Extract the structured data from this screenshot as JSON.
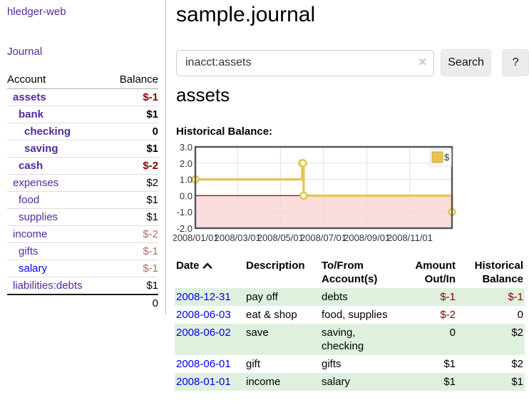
{
  "app": {
    "brand": "hledger-web",
    "nav_journal": "Journal"
  },
  "sidebar": {
    "col_account": "Account",
    "col_balance": "Balance",
    "accounts": [
      {
        "label": "assets",
        "depth": 1,
        "weight": "bold",
        "name_color": "purple",
        "balance": "$-1",
        "balance_class": "neg-strong"
      },
      {
        "label": "bank",
        "depth": 2,
        "weight": "bold",
        "name_color": "purple",
        "balance": "$1",
        "balance_class": "plain"
      },
      {
        "label": "checking",
        "depth": 3,
        "weight": "bold",
        "name_color": "purple",
        "balance": "0",
        "balance_class": "plain"
      },
      {
        "label": "saving",
        "depth": 3,
        "weight": "bold",
        "name_color": "purple",
        "balance": "$1",
        "balance_class": "plain"
      },
      {
        "label": "cash",
        "depth": 2,
        "weight": "bold",
        "name_color": "purple",
        "balance": "$-2",
        "balance_class": "neg-strong"
      },
      {
        "label": "expenses",
        "depth": 1,
        "weight": "normal",
        "name_color": "purple",
        "balance": "$2",
        "balance_class": "plain"
      },
      {
        "label": "food",
        "depth": 2,
        "weight": "normal",
        "name_color": "purple",
        "balance": "$1",
        "balance_class": "plain"
      },
      {
        "label": "supplies",
        "depth": 2,
        "weight": "normal",
        "name_color": "purple",
        "balance": "$1",
        "balance_class": "plain"
      },
      {
        "label": "income",
        "depth": 1,
        "weight": "normal",
        "name_color": "purple",
        "balance": "$-2",
        "balance_class": "neg-soft"
      },
      {
        "label": "gifts",
        "depth": 2,
        "weight": "normal",
        "name_color": "purple",
        "balance": "$-1",
        "balance_class": "neg-soft"
      },
      {
        "label": "salary",
        "depth": 2,
        "weight": "normal",
        "name_color": "blue",
        "balance": "$-1",
        "balance_class": "neg-soft"
      },
      {
        "label": "liabilities:debts",
        "depth": 1,
        "weight": "normal",
        "name_color": "purple",
        "balance": "$1",
        "balance_class": "plain"
      }
    ],
    "total": "0"
  },
  "main": {
    "title": "sample.journal",
    "search": {
      "value": "inacct:assets",
      "clear_icon": "✕",
      "search_button": "Search",
      "help_button": "?"
    },
    "account_heading": "assets",
    "chart_label": "Historical Balance:"
  },
  "chart_data": {
    "type": "line",
    "line_style": "step-after",
    "title": "Historical Balance:",
    "legend": {
      "label": "$",
      "position": "top-right",
      "swatch_color": "#e7c44f"
    },
    "series": [
      {
        "name": "$",
        "color": "#e7c44f",
        "points": [
          {
            "date": "2008/01/01",
            "day": 0,
            "value": 1
          },
          {
            "date": "2008/06/01",
            "day": 152,
            "value": 2
          },
          {
            "date": "2008/06/02",
            "day": 153,
            "value": 2
          },
          {
            "date": "2008/06/03",
            "day": 154,
            "value": 0
          },
          {
            "date": "2008/12/31",
            "day": 365,
            "value": -1
          }
        ]
      }
    ],
    "x_ticks": [
      {
        "label": "2008/01/01",
        "day": 0
      },
      {
        "label": "2008/03/01",
        "day": 60
      },
      {
        "label": "2008/05/01",
        "day": 121
      },
      {
        "label": "2008/07/01",
        "day": 182
      },
      {
        "label": "2008/09/01",
        "day": 244
      },
      {
        "label": "2008/11/01",
        "day": 305
      }
    ],
    "y_ticks": [
      {
        "label": "3.0",
        "value": 3
      },
      {
        "label": "2.0",
        "value": 2
      },
      {
        "label": "1.0",
        "value": 1
      },
      {
        "label": "0.0",
        "value": 0
      },
      {
        "label": "-1.0",
        "value": -1
      },
      {
        "label": "-2.0",
        "value": -2
      }
    ],
    "ylim": [
      -2,
      3
    ],
    "xlim_days": [
      0,
      365
    ],
    "grid": true,
    "colors": {
      "negative_region": "#fbdddd",
      "zero_line": "#990000",
      "grid_line": "#e0e0e0",
      "frame": "#545454",
      "swatch_border": "#cbab3c",
      "label_text": "#333333"
    }
  },
  "register": {
    "headers": {
      "date": "Date",
      "description": "Description",
      "accounts": "To/From Account(s)",
      "amount": "Amount Out/In",
      "balance": "Historical Balance"
    },
    "rows": [
      {
        "date": "2008-12-31",
        "description": "pay off",
        "accounts": "debts",
        "amount": "$-1",
        "amount_class": "neg-strong",
        "balance": "$-1",
        "balance_class": "neg-strong",
        "shaded": true
      },
      {
        "date": "2008-06-03",
        "description": "eat & shop",
        "accounts": "food, supplies",
        "amount": "$-2",
        "amount_class": "neg-strong",
        "balance": "0",
        "balance_class": "plain",
        "shaded": false
      },
      {
        "date": "2008-06-02",
        "description": "save",
        "accounts": "saving, checking",
        "amount": "0",
        "amount_class": "plain",
        "balance": "$2",
        "balance_class": "plain",
        "shaded": true
      },
      {
        "date": "2008-06-01",
        "description": "gift",
        "accounts": "gifts",
        "amount": "$1",
        "amount_class": "plain",
        "balance": "$2",
        "balance_class": "plain",
        "shaded": false
      },
      {
        "date": "2008-01-01",
        "description": "income",
        "accounts": "salary",
        "amount": "$1",
        "amount_class": "plain",
        "balance": "$1",
        "balance_class": "plain",
        "shaded": true
      }
    ]
  },
  "colors": {
    "link_purple": "#5229a3",
    "link_blue": "#0000ee",
    "negative_strong": "#8b0000",
    "negative_soft": "#b36a6a",
    "row_green": "#dff0df",
    "chart_gold": "#e7c44f"
  }
}
